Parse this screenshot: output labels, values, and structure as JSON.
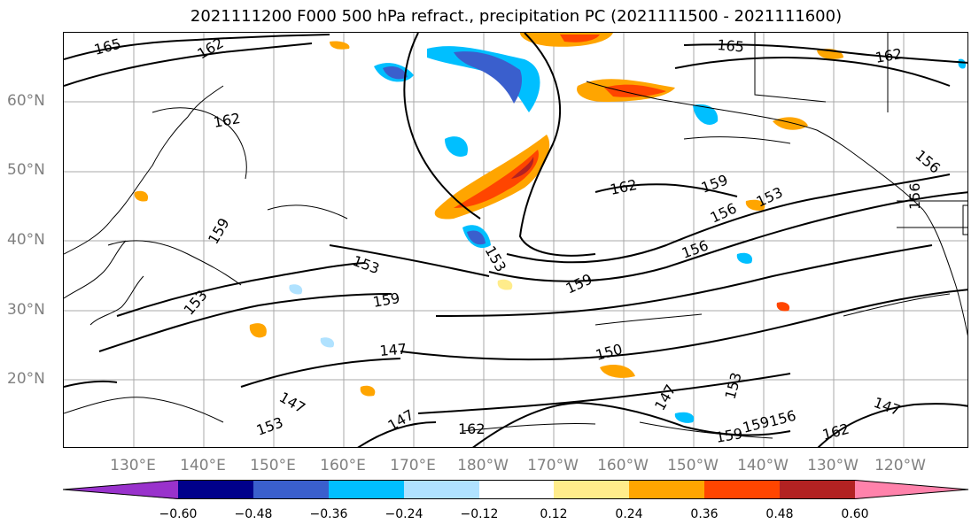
{
  "title": "2021111200 F000 500 hPa refract., precipitation PC (2021111500 - 2021111600)",
  "lat_labels": [
    "60°N",
    "50°N",
    "40°N",
    "30°N",
    "20°N"
  ],
  "lon_labels": [
    "130°E",
    "140°E",
    "150°E",
    "160°E",
    "170°E",
    "180°W",
    "170°W",
    "160°W",
    "150°W",
    "140°W",
    "130°W",
    "120°W"
  ],
  "colorbar": {
    "ticks": [
      "−0.60",
      "−0.48",
      "−0.36",
      "−0.24",
      "−0.12",
      "0.12",
      "0.24",
      "0.36",
      "0.48",
      "0.60"
    ],
    "colors": [
      "#9932cc",
      "#00008b",
      "#3a5fcd",
      "#00bfff",
      "#b0e2ff",
      "#ffffff",
      "#ffec8b",
      "#ffa500",
      "#ff4500",
      "#b22222",
      "#ff82ab"
    ]
  },
  "contour_labels": [
    "165",
    "162",
    "162",
    "165",
    "162",
    "162",
    "159",
    "156",
    "153",
    "153",
    "159",
    "156",
    "153",
    "159",
    "159",
    "153",
    "147",
    "150",
    "147",
    "147",
    "147",
    "162",
    "159",
    "159",
    "156",
    "153",
    "162",
    "147",
    "156",
    "156",
    "153"
  ],
  "legend_colors": {
    "negative": "#00bfff",
    "positive": "#ffa500",
    "contour": "#000000",
    "grid": "#a9a9a9"
  }
}
